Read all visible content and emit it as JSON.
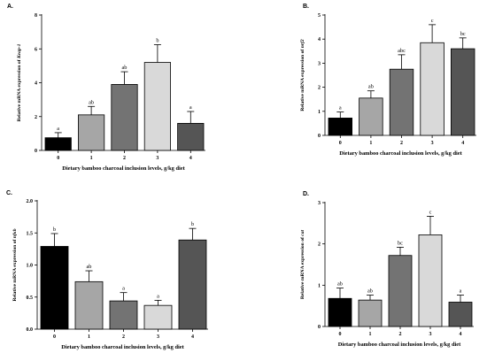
{
  "chart_data": [
    {
      "panel": "A.",
      "type": "bar",
      "categories": [
        "0",
        "1",
        "2",
        "3",
        "4"
      ],
      "values": [
        0.75,
        2.1,
        3.9,
        5.2,
        1.6
      ],
      "errors": [
        0.3,
        0.5,
        0.75,
        1.05,
        0.7
      ],
      "letters": [
        "a",
        "ab",
        "ab",
        "b",
        "a"
      ],
      "colors": [
        "#000000",
        "#a6a6a6",
        "#737373",
        "#d9d9d9",
        "#555555"
      ],
      "ylim": [
        0,
        8
      ],
      "yticks": [
        "0",
        "2",
        "4",
        "6",
        "8"
      ],
      "xlabel": "Dietary bamboo charcoal inclusion levels, g/kg diet",
      "ylabel": "Relative mRNA expression of Keap-1",
      "ylabel_parts": [
        "Relative mRNA expression of ",
        "Keap-1"
      ]
    },
    {
      "panel": "B.",
      "type": "bar",
      "categories": [
        "0",
        "1",
        "2",
        "3",
        "4"
      ],
      "values": [
        0.72,
        1.55,
        2.75,
        3.85,
        3.6
      ],
      "errors": [
        0.25,
        0.3,
        0.6,
        0.75,
        0.45
      ],
      "letters": [
        "a",
        "ab",
        "abc",
        "c",
        "bc"
      ],
      "colors": [
        "#000000",
        "#a6a6a6",
        "#737373",
        "#d9d9d9",
        "#555555"
      ],
      "ylim": [
        0,
        5
      ],
      "yticks": [
        "0",
        "1",
        "2",
        "3",
        "4",
        "5"
      ],
      "xlabel": "Dietary bamboo charcoal inclusion levels, g/kg diet",
      "ylabel": "Relative mRNA expression of nrf2",
      "ylabel_parts": [
        "Relative mRNA expression of ",
        "nrf2"
      ]
    },
    {
      "panel": "C.",
      "type": "bar",
      "categories": [
        "0",
        "1",
        "2",
        "3",
        "4"
      ],
      "values": [
        1.29,
        0.74,
        0.44,
        0.37,
        1.39
      ],
      "errors": [
        0.2,
        0.17,
        0.13,
        0.08,
        0.18
      ],
      "letters": [
        "b",
        "ab",
        "a",
        "a",
        "b"
      ],
      "colors": [
        "#000000",
        "#a6a6a6",
        "#737373",
        "#d9d9d9",
        "#555555"
      ],
      "ylim": [
        0,
        2.0
      ],
      "yticks": [
        "0.0",
        "0.5",
        "1.0",
        "1.5",
        "2.0"
      ],
      "xlabel": "Dietary bamboo charcoal inclusion levels, g/kg diet",
      "ylabel": "Relative mRNA expression of nfκb",
      "ylabel_parts": [
        "Relative mRNA expression of ",
        "nfκb"
      ]
    },
    {
      "panel": "D.",
      "type": "bar",
      "categories": [
        "0",
        "1",
        "2",
        "3",
        "4"
      ],
      "values": [
        0.68,
        0.64,
        1.72,
        2.22,
        0.59
      ],
      "errors": [
        0.25,
        0.12,
        0.2,
        0.45,
        0.17
      ],
      "letters": [
        "ab",
        "ab",
        "bc",
        "c",
        "a"
      ],
      "colors": [
        "#000000",
        "#a6a6a6",
        "#737373",
        "#d9d9d9",
        "#555555"
      ],
      "ylim": [
        0,
        3
      ],
      "yticks": [
        "0",
        "1",
        "2",
        "3"
      ],
      "xlabel": "Dietary bamboo charcoal inclusion levels, g/kg diet",
      "ylabel": "Relative mRNA expression of cat",
      "ylabel_parts": [
        "Relative mRNA expression of ",
        "cat"
      ]
    }
  ]
}
